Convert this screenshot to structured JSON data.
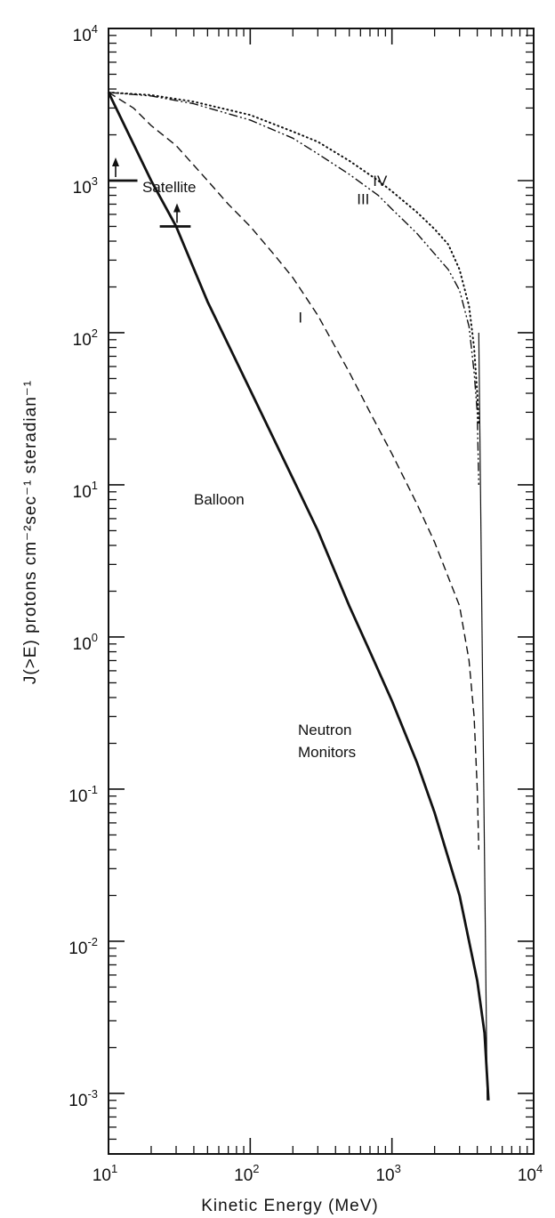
{
  "chart_data": {
    "type": "line",
    "xlabel": "Kinetic Energy (MeV)",
    "ylabel": "J(>E) protons cm⁻²sec⁻¹ steradian⁻¹",
    "x_scale": "log",
    "y_scale": "log",
    "xlim": [
      10,
      10000
    ],
    "ylim": [
      0.0004,
      10000
    ],
    "x_ticks": [
      {
        "base": "10",
        "exp": "1",
        "value": 10
      },
      {
        "base": "10",
        "exp": "2",
        "value": 100
      },
      {
        "base": "10",
        "exp": "3",
        "value": 1000
      },
      {
        "base": "10",
        "exp": "4",
        "value": 10000
      }
    ],
    "y_ticks": [
      {
        "base": "10",
        "exp": "4",
        "value": 10000
      },
      {
        "base": "10",
        "exp": "3",
        "value": 1000
      },
      {
        "base": "10",
        "exp": "2",
        "value": 100
      },
      {
        "base": "10",
        "exp": "1",
        "value": 10
      },
      {
        "base": "10",
        "exp": "0",
        "value": 1
      },
      {
        "base": "10",
        "exp": "-1",
        "value": 0.1
      },
      {
        "base": "10",
        "exp": "-2",
        "value": 0.01
      },
      {
        "base": "10",
        "exp": "-3",
        "value": 0.001
      }
    ],
    "grid": false,
    "series": [
      {
        "style": "solid",
        "points": [
          [
            10,
            3800
          ],
          [
            20,
            1000
          ],
          [
            30,
            500
          ],
          [
            50,
            160
          ],
          [
            100,
            42
          ],
          [
            200,
            11
          ],
          [
            300,
            5
          ],
          [
            500,
            1.6
          ],
          [
            700,
            0.8
          ],
          [
            1000,
            0.38
          ],
          [
            1500,
            0.15
          ],
          [
            2000,
            0.07
          ],
          [
            3000,
            0.02
          ],
          [
            4000,
            0.0055
          ],
          [
            4500,
            0.0025
          ],
          [
            4800,
            0.0009
          ]
        ]
      },
      {
        "name": "I",
        "style": "dashed",
        "points": [
          [
            10,
            3800
          ],
          [
            15,
            3000
          ],
          [
            20,
            2300
          ],
          [
            30,
            1700
          ],
          [
            50,
            1000
          ],
          [
            70,
            700
          ],
          [
            100,
            500
          ],
          [
            150,
            320
          ],
          [
            200,
            230
          ],
          [
            300,
            130
          ],
          [
            400,
            80
          ],
          [
            500,
            55
          ],
          [
            700,
            30
          ],
          [
            1000,
            16
          ],
          [
            1500,
            7.5
          ],
          [
            2000,
            4.2
          ],
          [
            3000,
            1.6
          ],
          [
            3500,
            0.7
          ],
          [
            3800,
            0.3
          ],
          [
            4000,
            0.1
          ],
          [
            4100,
            0.04
          ]
        ]
      },
      {
        "name": "III",
        "style": "dash-dot",
        "points": [
          [
            10,
            3800
          ],
          [
            20,
            3600
          ],
          [
            40,
            3200
          ],
          [
            100,
            2500
          ],
          [
            200,
            1900
          ],
          [
            300,
            1500
          ],
          [
            500,
            1100
          ],
          [
            800,
            800
          ],
          [
            1000,
            650
          ],
          [
            1500,
            450
          ],
          [
            2000,
            330
          ],
          [
            2500,
            260
          ],
          [
            3000,
            190
          ],
          [
            3500,
            110
          ],
          [
            3800,
            55
          ],
          [
            4000,
            30
          ],
          [
            4100,
            10
          ]
        ]
      },
      {
        "name": "IV",
        "style": "dotted",
        "points": [
          [
            10,
            3800
          ],
          [
            20,
            3650
          ],
          [
            40,
            3300
          ],
          [
            100,
            2700
          ],
          [
            200,
            2100
          ],
          [
            300,
            1800
          ],
          [
            500,
            1350
          ],
          [
            800,
            1000
          ],
          [
            1000,
            850
          ],
          [
            1500,
            620
          ],
          [
            2000,
            480
          ],
          [
            2500,
            380
          ],
          [
            3000,
            260
          ],
          [
            3500,
            150
          ],
          [
            3800,
            80
          ],
          [
            4000,
            40
          ],
          [
            4100,
            25
          ]
        ]
      }
    ],
    "satellite_limits": [
      {
        "x_range": [
          10,
          16
        ],
        "y": 1000
      },
      {
        "x_range": [
          23,
          38
        ],
        "y": 500
      }
    ],
    "annotations": [
      {
        "text": "Satellite"
      },
      {
        "text": "Balloon"
      },
      {
        "text": "Neutron"
      },
      {
        "text": "Monitors"
      }
    ]
  }
}
